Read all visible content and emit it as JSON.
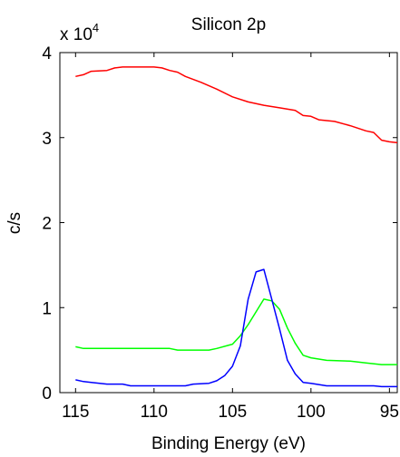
{
  "chart_data": {
    "type": "line",
    "title": "Silicon 2p",
    "xlabel": "Binding Energy (eV)",
    "ylabel": "c/s",
    "y_multiplier_label": "x 10",
    "y_multiplier_exponent": "4",
    "xlim": [
      116,
      94.5
    ],
    "ylim": [
      0,
      4
    ],
    "x_reversed": true,
    "grid": false,
    "legend": "none",
    "xticks": [
      115,
      110,
      105,
      100,
      95
    ],
    "yticks": [
      0,
      1,
      2,
      3,
      4
    ],
    "series": [
      {
        "color": "#ff0000",
        "points": [
          [
            115,
            3.72
          ],
          [
            114.5,
            3.74
          ],
          [
            114,
            3.78
          ],
          [
            113,
            3.79
          ],
          [
            112.5,
            3.82
          ],
          [
            112,
            3.83
          ],
          [
            110,
            3.83
          ],
          [
            109.5,
            3.82
          ],
          [
            109,
            3.79
          ],
          [
            108.5,
            3.77
          ],
          [
            108,
            3.72
          ],
          [
            107,
            3.65
          ],
          [
            106,
            3.57
          ],
          [
            105,
            3.48
          ],
          [
            104,
            3.42
          ],
          [
            103,
            3.38
          ],
          [
            102,
            3.35
          ],
          [
            101,
            3.32
          ],
          [
            100.5,
            3.26
          ],
          [
            100,
            3.25
          ],
          [
            99.5,
            3.21
          ],
          [
            98.5,
            3.19
          ],
          [
            97.5,
            3.14
          ],
          [
            96.5,
            3.08
          ],
          [
            96,
            3.06
          ],
          [
            95.5,
            2.97
          ],
          [
            95,
            2.95
          ],
          [
            94.5,
            2.94
          ]
        ]
      },
      {
        "color": "#00ff00",
        "points": [
          [
            115,
            0.54
          ],
          [
            114.5,
            0.52
          ],
          [
            109,
            0.52
          ],
          [
            108.5,
            0.5
          ],
          [
            106.5,
            0.5
          ],
          [
            106,
            0.52
          ],
          [
            105,
            0.57
          ],
          [
            104.5,
            0.67
          ],
          [
            104,
            0.8
          ],
          [
            103.5,
            0.95
          ],
          [
            103,
            1.1
          ],
          [
            102.5,
            1.08
          ],
          [
            102,
            0.98
          ],
          [
            101.5,
            0.76
          ],
          [
            101,
            0.58
          ],
          [
            100.5,
            0.44
          ],
          [
            100,
            0.41
          ],
          [
            99,
            0.38
          ],
          [
            97.5,
            0.37
          ],
          [
            96.5,
            0.35
          ],
          [
            95.5,
            0.33
          ],
          [
            94.5,
            0.33
          ]
        ]
      },
      {
        "color": "#0000ff",
        "points": [
          [
            115,
            0.15
          ],
          [
            114.5,
            0.13
          ],
          [
            114,
            0.12
          ],
          [
            113,
            0.1
          ],
          [
            112,
            0.1
          ],
          [
            111.5,
            0.08
          ],
          [
            108,
            0.08
          ],
          [
            107.5,
            0.1
          ],
          [
            106.5,
            0.11
          ],
          [
            106,
            0.14
          ],
          [
            105.5,
            0.2
          ],
          [
            105,
            0.31
          ],
          [
            104.5,
            0.55
          ],
          [
            104,
            1.1
          ],
          [
            103.5,
            1.42
          ],
          [
            103,
            1.45
          ],
          [
            102.5,
            1.1
          ],
          [
            102,
            0.75
          ],
          [
            101.5,
            0.38
          ],
          [
            101,
            0.22
          ],
          [
            100.5,
            0.12
          ],
          [
            100,
            0.11
          ],
          [
            99,
            0.08
          ],
          [
            96,
            0.08
          ],
          [
            95.5,
            0.07
          ],
          [
            94.5,
            0.07
          ]
        ]
      }
    ]
  }
}
